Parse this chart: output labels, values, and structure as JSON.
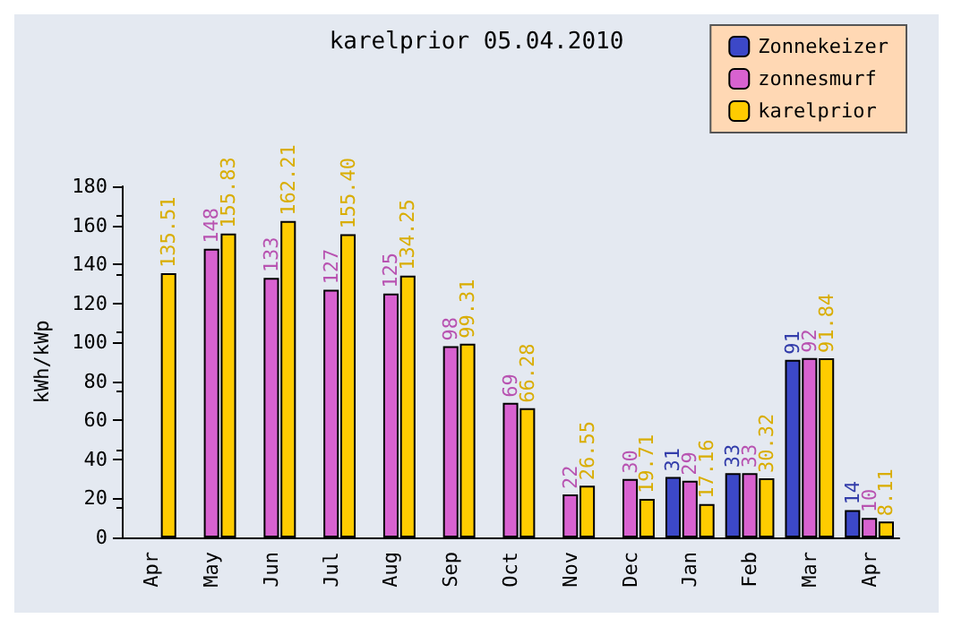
{
  "chart_data": {
    "type": "bar",
    "title": "karelprior 05.04.2010",
    "ylabel": "kWh/kWp",
    "categories": [
      "Apr",
      "May",
      "Jun",
      "Jul",
      "Aug",
      "Sep",
      "Oct",
      "Nov",
      "Dec",
      "Jan",
      "Feb",
      "Mar",
      "Apr"
    ],
    "series": [
      {
        "name": "Zonnekeizer",
        "color": "#3c48c8",
        "values": [
          null,
          null,
          null,
          null,
          null,
          null,
          null,
          null,
          null,
          31,
          33,
          91,
          14
        ],
        "value_labels": [
          null,
          null,
          null,
          null,
          null,
          null,
          null,
          null,
          null,
          "31",
          "33",
          "91",
          "14"
        ]
      },
      {
        "name": "zonnesmurf",
        "color": "#d862d0",
        "values": [
          null,
          148,
          133,
          127,
          125,
          98,
          69,
          22,
          30,
          29,
          33,
          92,
          10
        ],
        "value_labels": [
          null,
          "148",
          "133",
          "127",
          "125",
          "98",
          "69",
          "22",
          "30",
          "29",
          "33",
          "92",
          "10"
        ]
      },
      {
        "name": "karelprior",
        "color": "#ffcc00",
        "values": [
          135.51,
          155.83,
          162.21,
          155.4,
          134.25,
          99.31,
          66.28,
          26.55,
          19.71,
          17.16,
          30.32,
          91.84,
          8.11
        ],
        "value_labels": [
          "135.51",
          "155.83",
          "162.21",
          "155.40",
          "134.25",
          "99.31",
          "66.28",
          "26.55",
          "19.71",
          "17.16",
          "30.32",
          "91.84",
          "8.11"
        ]
      }
    ],
    "ylim": [
      0,
      180
    ],
    "yticks": [
      0,
      20,
      40,
      60,
      80,
      100,
      120,
      140,
      160,
      180
    ],
    "grid": false,
    "legend": "top right"
  }
}
